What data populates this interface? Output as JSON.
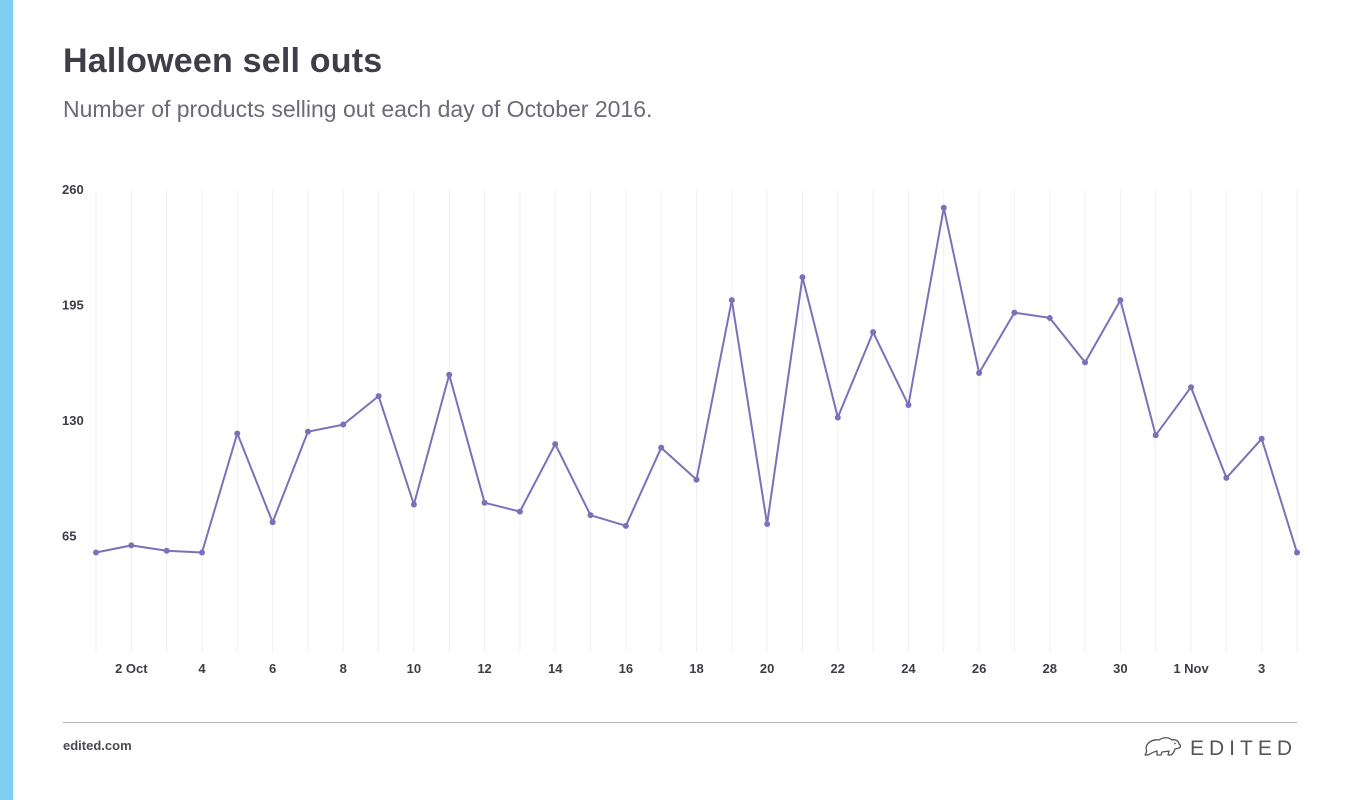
{
  "title": "Halloween sell outs",
  "subtitle": "Number of products selling out each day of October 2016.",
  "footer": {
    "url": "edited.com",
    "brand": "EDITED"
  },
  "colors": {
    "accent_bar": "#7fcdf0",
    "line": "#7b71b8",
    "grid": "#f0f0f2",
    "text": "#3d3d46"
  },
  "chart_data": {
    "type": "line",
    "title": "Halloween sell outs",
    "xlabel": "",
    "ylabel": "",
    "ylim": [
      0,
      260
    ],
    "yticks": [
      65,
      130,
      195,
      260
    ],
    "grid": "vertical",
    "x": [
      "Oct 1",
      "Oct 2",
      "Oct 3",
      "Oct 4",
      "Oct 5",
      "Oct 6",
      "Oct 7",
      "Oct 8",
      "Oct 9",
      "Oct 10",
      "Oct 11",
      "Oct 12",
      "Oct 13",
      "Oct 14",
      "Oct 15",
      "Oct 16",
      "Oct 17",
      "Oct 18",
      "Oct 19",
      "Oct 20",
      "Oct 21",
      "Oct 22",
      "Oct 23",
      "Oct 24",
      "Oct 25",
      "Oct 26",
      "Oct 27",
      "Oct 28",
      "Oct 29",
      "Oct 30",
      "Oct 31",
      "Nov 1",
      "Nov 2",
      "Nov 3",
      "Nov 4"
    ],
    "xtick_labels": [
      {
        "index": 1,
        "label": "2 Oct"
      },
      {
        "index": 3,
        "label": "4"
      },
      {
        "index": 5,
        "label": "6"
      },
      {
        "index": 7,
        "label": "8"
      },
      {
        "index": 9,
        "label": "10"
      },
      {
        "index": 11,
        "label": "12"
      },
      {
        "index": 13,
        "label": "14"
      },
      {
        "index": 15,
        "label": "16"
      },
      {
        "index": 17,
        "label": "18"
      },
      {
        "index": 19,
        "label": "20"
      },
      {
        "index": 21,
        "label": "22"
      },
      {
        "index": 23,
        "label": "24"
      },
      {
        "index": 25,
        "label": "26"
      },
      {
        "index": 27,
        "label": "28"
      },
      {
        "index": 29,
        "label": "30"
      },
      {
        "index": 31,
        "label": "1 Nov"
      },
      {
        "index": 33,
        "label": "3"
      }
    ],
    "series": [
      {
        "values": [
          56,
          60,
          57,
          56,
          123,
          73,
          124,
          128,
          144,
          83,
          156,
          84,
          79,
          117,
          77,
          71,
          115,
          97,
          198,
          72,
          211,
          132,
          180,
          139,
          250,
          157,
          191,
          188,
          163,
          198,
          122,
          149,
          98,
          120,
          56
        ]
      }
    ]
  }
}
